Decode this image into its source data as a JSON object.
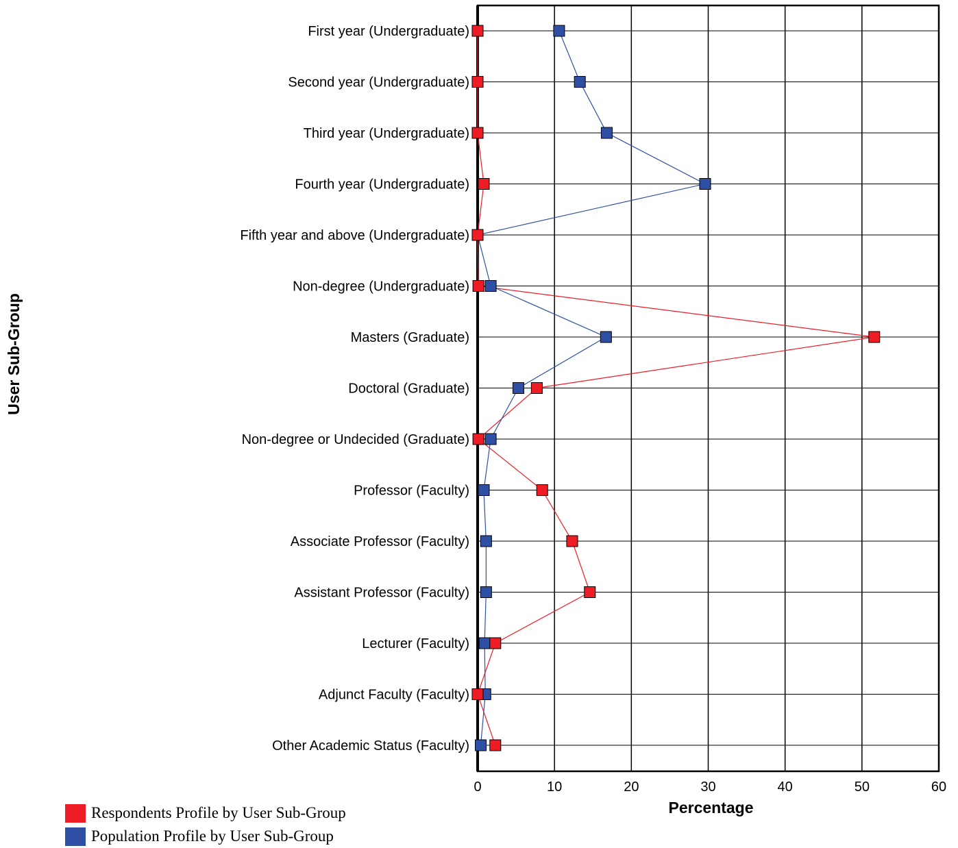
{
  "chart_data": {
    "type": "line",
    "orientation": "horizontal",
    "categories": [
      "First year (Undergraduate)",
      "Second year (Undergraduate)",
      "Third year (Undergraduate)",
      "Fourth year (Undergraduate)",
      "Fifth year and above (Undergraduate)",
      "Non-degree (Undergraduate)",
      "Masters (Graduate)",
      "Doctoral (Graduate)",
      "Non-degree or Undecided (Graduate)",
      "Professor (Faculty)",
      "Associate Professor (Faculty)",
      "Assistant Professor (Faculty)",
      "Lecturer (Faculty)",
      "Adjunct Faculty (Faculty)",
      "Other Academic Status (Faculty)"
    ],
    "series": [
      {
        "name": "Respondents Profile by User Sub-Group",
        "color": "#ee1c25",
        "values": [
          0,
          0,
          0,
          0.8,
          0,
          0.1,
          51.6,
          7.7,
          0.1,
          8.4,
          12.3,
          14.6,
          2.3,
          0,
          2.3
        ]
      },
      {
        "name": "Population Profile by User Sub-Group",
        "color": "#2e4fa3",
        "values": [
          10.6,
          13.3,
          16.8,
          29.6,
          0,
          1.7,
          16.7,
          5.3,
          1.7,
          0.8,
          1.1,
          1.1,
          0.9,
          1.0,
          0.4
        ]
      }
    ],
    "xlabel": "Percentage",
    "ylabel": "User Sub-Group",
    "xlim": [
      0,
      60
    ],
    "xticks": [
      "0",
      "10",
      "20",
      "30",
      "40",
      "50",
      "60"
    ],
    "grid": true,
    "legend_position": "bottom-left"
  }
}
